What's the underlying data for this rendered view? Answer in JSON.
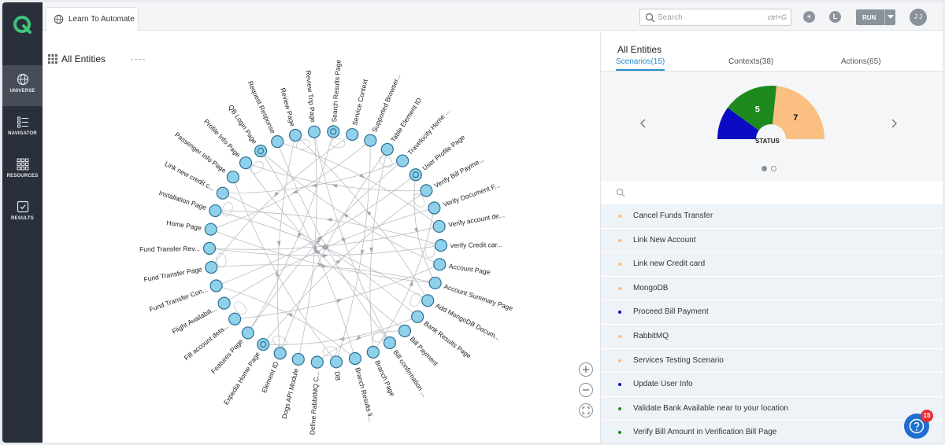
{
  "sidebar": {
    "items": [
      {
        "label": "UNIVERSE",
        "icon": "globe-icon"
      },
      {
        "label": "NAVIGATOR",
        "icon": "list-icon"
      },
      {
        "label": "RESOURCES",
        "icon": "grid-icon"
      },
      {
        "label": "RESULTS",
        "icon": "checkbox-icon"
      }
    ]
  },
  "header": {
    "tab_label": "Learn To Automate",
    "search_placeholder": "Search",
    "search_shortcut": "ctrl+G",
    "add_label": "+",
    "info_label": "L",
    "run_label": "RUN",
    "avatar_initials": "J J"
  },
  "graph": {
    "title": "All Entities",
    "nodes": [
      "Search Results Page",
      "Service Context",
      "Supported Browser...",
      "Table Element ID",
      "Travelocity Home ...",
      "User Profile Page",
      "Verify Bill Payme...",
      "Verify Document F...",
      "Verify account de...",
      "verify Credit car...",
      "Account Page",
      "Account Summary Page",
      "Add MongoDB Docum...",
      "Bank Results Page",
      "Bill Payment",
      "Bill confirmation ...",
      "Branch Page",
      "Branch Results li...",
      "DB",
      "Define RabbitMQ C...",
      "Dogs API Module",
      "Element ID",
      "Expedia Home Page",
      "Features Page",
      "Fill account deta...",
      "Flight Availabili...",
      "Fund Transfer Con...",
      "Fund Transfer Page",
      "Fund Transfer Rev...",
      "Home Page",
      "Installation Page",
      "Link new credit c...",
      "Passenger Info Page",
      "Profile Info Page",
      "QB Login Page",
      "Request Response",
      "Review Page",
      "Review Trip Page"
    ]
  },
  "right_panel": {
    "title": "All Entities",
    "tabs": [
      {
        "label": "Scenarios(15)",
        "active": true
      },
      {
        "label": "Contexts(38)",
        "active": false
      },
      {
        "label": "Actions(65)",
        "active": false
      }
    ],
    "status": {
      "label": "STATUS",
      "segments": [
        {
          "value": 3,
          "color": "#0b0bc4",
          "label": ""
        },
        {
          "value": 5,
          "color": "#1e8a1e",
          "label": "5"
        },
        {
          "value": 7,
          "color": "#fbbf82",
          "label": "7"
        }
      ]
    },
    "scenarios": [
      {
        "label": "Cancel Funds Transfer",
        "color": "#fbbf82"
      },
      {
        "label": "Link New Account",
        "color": "#fbbf82"
      },
      {
        "label": "Link new Credit card",
        "color": "#fbbf82"
      },
      {
        "label": "MongoDB",
        "color": "#fbbf82"
      },
      {
        "label": "Proceed Bill Payment",
        "color": "#0b0bc4"
      },
      {
        "label": "RabbitMQ",
        "color": "#fbbf82"
      },
      {
        "label": "Services Testing Scenario",
        "color": "#fbbf82"
      },
      {
        "label": "Update User Info",
        "color": "#0b0bc4"
      },
      {
        "label": "Validate Bank Available near to your location",
        "color": "#1e8a1e"
      },
      {
        "label": "Verify Bill Amount in Verification Bill Page",
        "color": "#1e8a1e"
      }
    ]
  },
  "help": {
    "badge": "15"
  }
}
